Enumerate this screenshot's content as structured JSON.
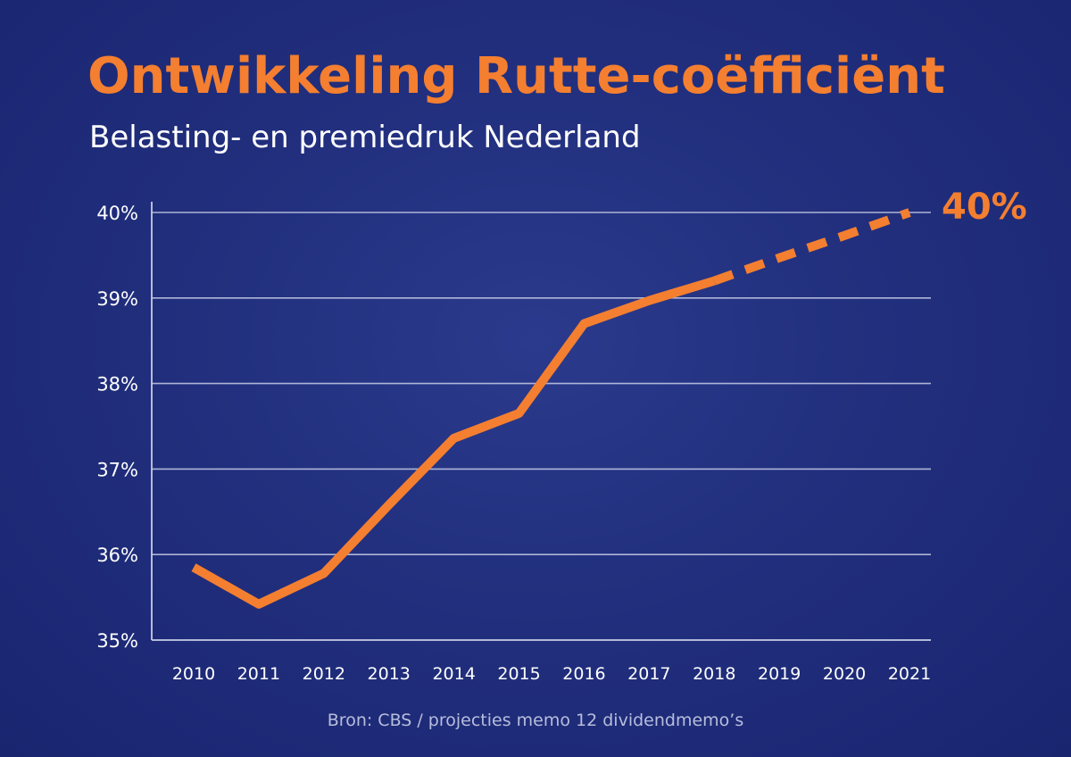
{
  "chart_data": {
    "type": "line",
    "title": "Ontwikkeling Rutte-coëfficiënt",
    "subtitle": "Belasting- en premiedruk Nederland",
    "x": [
      2010,
      2011,
      2012,
      2013,
      2014,
      2015,
      2016,
      2017,
      2018,
      2019,
      2020,
      2021
    ],
    "x_tick_labels": [
      "2010",
      "2011",
      "2012",
      "2013",
      "2014",
      "2015",
      "2016",
      "2017",
      "2018",
      "2019",
      "2020",
      "2021"
    ],
    "y_tick_labels": [
      "35%",
      "36%",
      "37%",
      "38%",
      "39%",
      "40%"
    ],
    "y_ticks": [
      35,
      36,
      37,
      38,
      39,
      40
    ],
    "ylim": [
      35,
      40
    ],
    "xlim": [
      2010,
      2021
    ],
    "grid": "horizontal",
    "series": [
      {
        "style": "solid",
        "x": [
          2010,
          2011,
          2012,
          2013,
          2014,
          2015,
          2016,
          2017,
          2018
        ],
        "values": [
          35.85,
          35.42,
          35.78,
          36.58,
          37.36,
          37.65,
          38.7,
          38.97,
          39.2
        ]
      },
      {
        "style": "dashed",
        "x": [
          2018,
          2019,
          2020,
          2021
        ],
        "values": [
          39.2,
          39.47,
          39.73,
          40.0
        ]
      }
    ],
    "end_label": "40%",
    "source": "Bron: CBS / projecties memo 12 dividendmemo’s",
    "colors": {
      "line": "#f47f30",
      "grid": "#c8cde6",
      "text": "#ffffff",
      "background": "#22307f"
    }
  }
}
